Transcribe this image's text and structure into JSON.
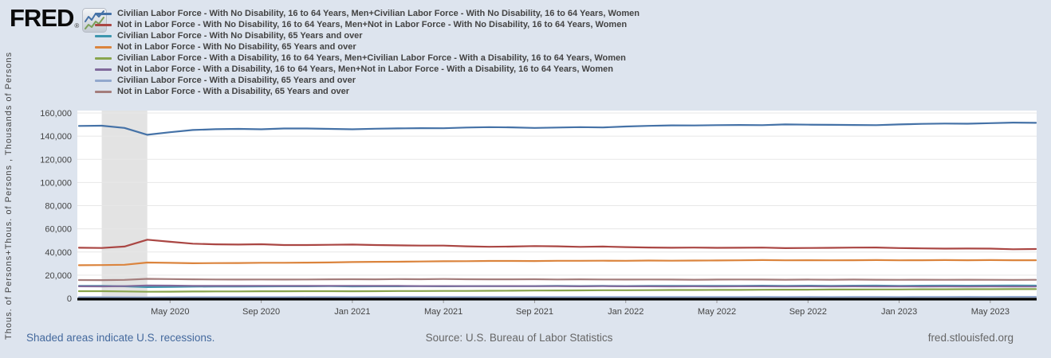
{
  "logo": {
    "text": "FRED",
    "registered": "®"
  },
  "footer": {
    "recession_note": "Shaded areas indicate U.S. recessions.",
    "source": "Source: U.S. Bureau of Labor Statistics",
    "site": "fred.stlouisfed.org"
  },
  "chart_data": {
    "type": "line",
    "title": "",
    "xlabel": "",
    "ylabel": "Thous. of Persons+Thous. of Persons , Thousands of Persons",
    "ylim": [
      0,
      160000
    ],
    "grid": "horizontal",
    "legend_position": "top-left",
    "plot_bg": "#ffffff",
    "gridline_color": "#e7e7e7",
    "recession_band_color": "#e3e3e3",
    "axis_line_color": "#000000",
    "tick_color": "#999999",
    "label_color": "#444444",
    "y_ticks": [
      0,
      20000,
      40000,
      60000,
      80000,
      100000,
      120000,
      140000,
      160000
    ],
    "y_tick_labels": [
      "0",
      "20,000",
      "40,000",
      "60,000",
      "80,000",
      "100,000",
      "120,000",
      "140,000",
      "160,000"
    ],
    "x_tick_labels": [
      "May 2020",
      "Sep 2020",
      "Jan 2021",
      "May 2021",
      "Sep 2021",
      "Jan 2022",
      "May 2022",
      "Sep 2022",
      "Jan 2023",
      "May 2023"
    ],
    "x_tick_month_indices": [
      4,
      8,
      12,
      16,
      20,
      24,
      28,
      32,
      36,
      40
    ],
    "months": [
      "2020-01",
      "2020-02",
      "2020-03",
      "2020-04",
      "2020-05",
      "2020-06",
      "2020-07",
      "2020-08",
      "2020-09",
      "2020-10",
      "2020-11",
      "2020-12",
      "2021-01",
      "2021-02",
      "2021-03",
      "2021-04",
      "2021-05",
      "2021-06",
      "2021-07",
      "2021-08",
      "2021-09",
      "2021-10",
      "2021-11",
      "2021-12",
      "2022-01",
      "2022-02",
      "2022-03",
      "2022-04",
      "2022-05",
      "2022-06",
      "2022-07",
      "2022-08",
      "2022-09",
      "2022-10",
      "2022-11",
      "2022-12",
      "2023-01",
      "2023-02",
      "2023-03",
      "2023-04",
      "2023-05",
      "2023-06",
      "2023-07"
    ],
    "recessions": [
      {
        "start": "2020-02",
        "end": "2020-04",
        "start_month_index": 1,
        "end_month_index": 3
      }
    ],
    "series": [
      {
        "label": "Civilian Labor Force - With No Disability, 16 to 64 Years, Men+Civilian Labor Force - With No Disability, 16 to 64 Years, Women",
        "color": "#4572a7",
        "values": [
          148800,
          149000,
          147100,
          141200,
          143400,
          145300,
          146000,
          146300,
          145900,
          146600,
          146600,
          146300,
          145900,
          146400,
          146700,
          146900,
          146800,
          147400,
          147800,
          147600,
          147100,
          147400,
          147800,
          147500,
          148300,
          148900,
          149300,
          149200,
          149500,
          149600,
          149500,
          150100,
          149900,
          149800,
          149600,
          149500,
          150100,
          150600,
          150900,
          150700,
          151200,
          151700,
          151500
        ]
      },
      {
        "label": "Not in Labor Force - With No Disability, 16 to 64 Years, Men+Not in Labor Force - With No Disability, 16 to 64 Years, Women",
        "color": "#aa4643",
        "values": [
          43700,
          43500,
          44700,
          50600,
          48800,
          47200,
          46600,
          46400,
          46700,
          46000,
          46000,
          46200,
          46400,
          46000,
          45700,
          45500,
          45500,
          44900,
          44500,
          44700,
          45100,
          44900,
          44400,
          44700,
          44200,
          43900,
          43700,
          43800,
          43600,
          43700,
          43800,
          43300,
          43500,
          43600,
          43800,
          43900,
          43400,
          43100,
          42900,
          43000,
          42900,
          42400,
          42600
        ]
      },
      {
        "label": "Civilian Labor Force - With No Disability, 65 Years and over",
        "color": "#3d96ae",
        "values": [
          10700,
          10800,
          10400,
          9700,
          9900,
          10100,
          10200,
          10200,
          10300,
          10400,
          10400,
          10500,
          10300,
          10400,
          10400,
          10500,
          10400,
          10500,
          10600,
          10500,
          10600,
          10700,
          10600,
          10700,
          10600,
          10700,
          10800,
          10700,
          10800,
          10800,
          10900,
          10800,
          10900,
          10800,
          10900,
          11000,
          10800,
          10900,
          11000,
          10900,
          11000,
          11100,
          11000
        ]
      },
      {
        "label": "Not in Labor Force - With No Disability, 65 Years and over",
        "color": "#db843d",
        "values": [
          28600,
          28700,
          29000,
          30900,
          30600,
          30300,
          30400,
          30500,
          30700,
          30700,
          30800,
          31000,
          31300,
          31500,
          31600,
          31800,
          32000,
          32100,
          32300,
          32300,
          32200,
          32400,
          32400,
          32500,
          32400,
          32600,
          32500,
          32600,
          32700,
          32800,
          33000,
          32800,
          32900,
          32800,
          32900,
          33000,
          32800,
          32900,
          33000,
          32900,
          33000,
          32900,
          32900
        ]
      },
      {
        "label": "Civilian Labor Force - With a Disability, 16 to 64 Years, Men+Civilian Labor Force - With a Disability, 16 to 64 Years, Women",
        "color": "#89a54e",
        "values": [
          6200,
          6200,
          6000,
          5700,
          5800,
          5900,
          6000,
          6000,
          6100,
          6100,
          6200,
          6200,
          6100,
          6200,
          6300,
          6300,
          6400,
          6400,
          6500,
          6600,
          6700,
          6800,
          6900,
          7000,
          7000,
          7100,
          7200,
          7200,
          7300,
          7300,
          7400,
          7500,
          7500,
          7600,
          7600,
          7700,
          7700,
          7800,
          7800,
          7900,
          7900,
          8000,
          8000
        ]
      },
      {
        "label": "Not in Labor Force - With a Disability, 16 to 64 Years, Men+Not in Labor Force - With a Disability, 16 to 64 Years, Women",
        "color": "#80699b",
        "values": [
          10400,
          10300,
          10500,
          11100,
          11000,
          10800,
          10700,
          10700,
          10800,
          10700,
          10700,
          10800,
          10800,
          10700,
          10700,
          10600,
          10600,
          10500,
          10500,
          10600,
          10500,
          10500,
          10400,
          10500,
          10400,
          10400,
          10300,
          10400,
          10300,
          10400,
          10400,
          10300,
          10400,
          10300,
          10400,
          10300,
          10300,
          10200,
          10300,
          10200,
          10300,
          10200,
          10200
        ]
      },
      {
        "label": "Civilian Labor Force - With a Disability, 65 Years and over",
        "color": "#92a8cd",
        "values": [
          1000,
          1000,
          950,
          900,
          950,
          1000,
          1000,
          1050,
          1050,
          1050,
          1100,
          1100,
          1050,
          1100,
          1100,
          1100,
          1150,
          1100,
          1150,
          1150,
          1100,
          1150,
          1150,
          1200,
          1150,
          1200,
          1200,
          1150,
          1200,
          1200,
          1250,
          1200,
          1250,
          1200,
          1250,
          1250,
          1200,
          1250,
          1250,
          1300,
          1250,
          1300,
          1300
        ]
      },
      {
        "label": "Not in Labor Force - With a Disability, 65 Years and over",
        "color": "#a47d7c",
        "values": [
          15800,
          15700,
          15900,
          16800,
          16600,
          16400,
          16300,
          16200,
          16300,
          16200,
          16300,
          16400,
          16500,
          16400,
          16600,
          16500,
          16700,
          16500,
          16400,
          16400,
          16500,
          16300,
          16400,
          16300,
          16200,
          16300,
          16200,
          16100,
          16200,
          16300,
          16200,
          16100,
          16200,
          16100,
          16200,
          16100,
          16000,
          16100,
          16000,
          16100,
          16000,
          15900,
          16000
        ]
      }
    ]
  }
}
